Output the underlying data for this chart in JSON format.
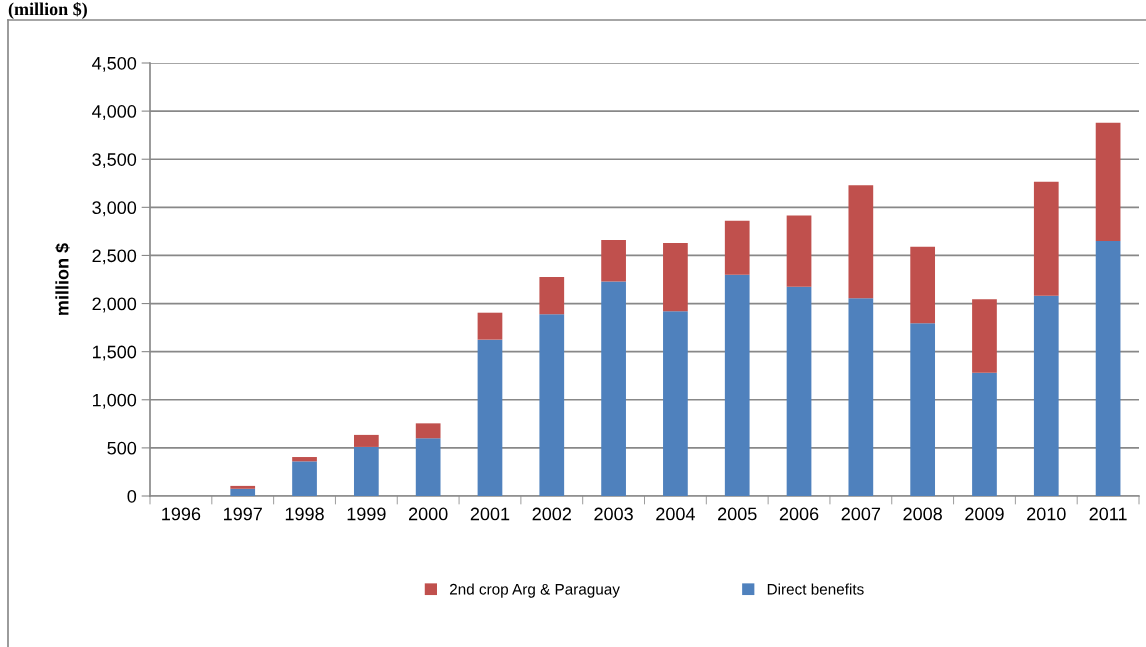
{
  "chart_data": {
    "type": "bar",
    "title": "(million $)",
    "ylabel": "million $",
    "stacked": true,
    "categories": [
      "1996",
      "1997",
      "1998",
      "1999",
      "2000",
      "2001",
      "2002",
      "2003",
      "2004",
      "2005",
      "2006",
      "2007",
      "2008",
      "2009",
      "2010",
      "2011"
    ],
    "series": [
      {
        "name": "Direct benefits",
        "color": "#4f81bd",
        "values": [
          0,
          75,
          360,
          510,
          600,
          1625,
          1890,
          2230,
          1920,
          2300,
          2175,
          2055,
          1795,
          1280,
          2080,
          2650
        ]
      },
      {
        "name": "2nd crop Arg & Paraguay",
        "color": "#c0504d",
        "values": [
          0,
          30,
          45,
          125,
          155,
          280,
          385,
          430,
          710,
          560,
          740,
          1175,
          795,
          765,
          1185,
          1230
        ]
      }
    ],
    "ylim": [
      0,
      4500
    ],
    "yticks": [
      {
        "value": 0,
        "label": "0"
      },
      {
        "value": 500,
        "label": "500"
      },
      {
        "value": 1000,
        "label": "1,000"
      },
      {
        "value": 1500,
        "label": "1,500"
      },
      {
        "value": 2000,
        "label": "2,000"
      },
      {
        "value": 2500,
        "label": "2,500"
      },
      {
        "value": 3000,
        "label": "3,000"
      },
      {
        "value": 3500,
        "label": "3,500"
      },
      {
        "value": 4000,
        "label": "4,000"
      },
      {
        "value": 4500,
        "label": "4,500"
      }
    ],
    "grid": "y",
    "legend": "bottom"
  }
}
